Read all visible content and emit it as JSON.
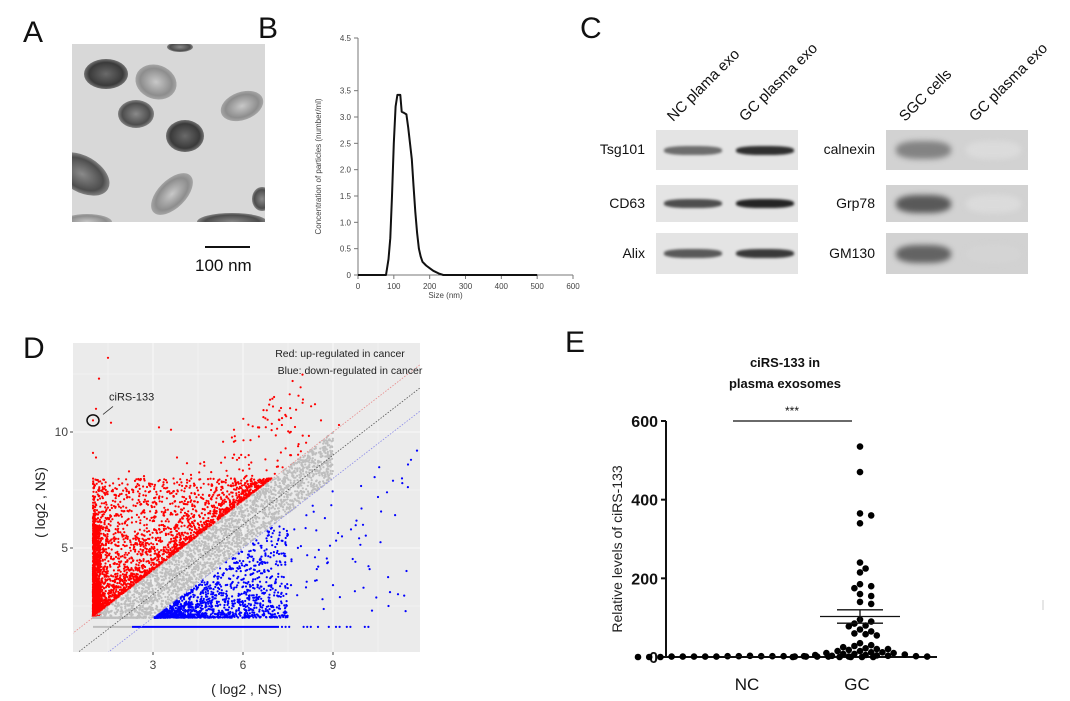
{
  "panels": {
    "A": {
      "letter": "A",
      "image": "transmission-electron-micrograph-of-exosomes",
      "scale_bar_label": "100 nm"
    },
    "B": {
      "letter": "B"
    },
    "C": {
      "letter": "C",
      "left_blot": {
        "lanes": [
          "NC plama exo",
          "GC plasma exo"
        ],
        "rows": [
          {
            "label": "Tsg101",
            "intensities": [
              0.55,
              0.85
            ]
          },
          {
            "label": "CD63",
            "intensities": [
              0.7,
              0.9
            ]
          },
          {
            "label": "Alix",
            "intensities": [
              0.65,
              0.8
            ]
          }
        ]
      },
      "right_blot": {
        "lanes": [
          "SGC cells",
          "GC plasma exo"
        ],
        "rows": [
          {
            "label": "calnexin",
            "intensities": [
              0.45,
              0.03
            ]
          },
          {
            "label": "Grp78",
            "intensities": [
              0.65,
              0.03
            ]
          },
          {
            "label": "GM130",
            "intensities": [
              0.6,
              0.06
            ]
          }
        ]
      }
    },
    "D": {
      "letter": "D"
    },
    "E": {
      "letter": "E"
    }
  },
  "chart_data": [
    {
      "panel": "B",
      "type": "line",
      "title": "",
      "xlabel": "Size (nm)",
      "ylabel": "Concentration of particles (number/ml)",
      "xlim": [
        0,
        600
      ],
      "ylim": [
        0,
        4.5
      ],
      "xticks": [
        "0",
        "100",
        "200",
        "300",
        "400",
        "500",
        "600"
      ],
      "yticks": [
        "0",
        "0.5",
        "1.0",
        "1.5",
        "2.0",
        "2.5",
        "3.0",
        "3.5",
        "4.5"
      ],
      "grid": false,
      "series": [
        {
          "name": "particle size distribution",
          "x": [
            0,
            40,
            78,
            85,
            90,
            95,
            100,
            105,
            110,
            118,
            122,
            128,
            135,
            140,
            145,
            150,
            155,
            160,
            165,
            170,
            175,
            180,
            190,
            200,
            210,
            225,
            238,
            260,
            300,
            400,
            500
          ],
          "y": [
            0,
            0,
            0,
            0.3,
            0.7,
            1.5,
            2.5,
            3.2,
            3.42,
            3.42,
            3.1,
            3.08,
            3.05,
            2.8,
            2.5,
            2.2,
            1.7,
            1.2,
            0.8,
            0.5,
            0.35,
            0.25,
            0.18,
            0.13,
            0.08,
            0.03,
            0,
            0,
            0,
            0,
            0
          ]
        }
      ]
    },
    {
      "panel": "D",
      "type": "scatter",
      "title": "",
      "xlabel": "( log2 , NS)",
      "ylabel": "( log2 , NS)",
      "xlim": [
        0.3,
        12
      ],
      "ylim": [
        1.0,
        13.5
      ],
      "xticks": [
        "3",
        "6",
        "9"
      ],
      "yticks": [
        "5",
        "10"
      ],
      "grid": true,
      "legend": [
        "Red: up-regulated in cancer",
        "Blue: down-regulated in cancer"
      ],
      "legend_position": "top-right",
      "annotation": {
        "label": "ciRS-133",
        "x": 1.0,
        "y": 10.5
      },
      "series": [
        {
          "name": "up-regulated",
          "color": "#ff0000",
          "description": "dense cloud above upper diagonal threshold, x from 1 to ~9, y from 2 to ~12",
          "outliers": [
            [
              1.5,
              13.2
            ],
            [
              1.2,
              12.3
            ],
            [
              1.0,
              10.5
            ],
            [
              1.1,
              11.0
            ],
            [
              1.6,
              10.4
            ],
            [
              3.2,
              10.2
            ],
            [
              3.6,
              10.1
            ],
            [
              5.7,
              10.1
            ],
            [
              7.0,
              11.1
            ],
            [
              7.3,
              10.6
            ],
            [
              8.0,
              11.4
            ],
            [
              8.4,
              11.2
            ],
            [
              8.6,
              10.5
            ],
            [
              9.2,
              10.3
            ],
            [
              6.5,
              10.2
            ],
            [
              1.0,
              9.1
            ],
            [
              1.1,
              8.9
            ],
            [
              2.2,
              8.3
            ],
            [
              2.7,
              8.1
            ],
            [
              3.8,
              8.9
            ],
            [
              5.4,
              8.9
            ],
            [
              5.8,
              8.8
            ]
          ]
        },
        {
          "name": "not significant",
          "color": "#bebebe",
          "description": "band along diagonal between thresholds"
        },
        {
          "name": "down-regulated",
          "color": "#0000ff",
          "description": "dense cloud below lower diagonal threshold, x from 3 to ~12, y from 2 to ~9",
          "outliers": [
            [
              11.8,
              9.2
            ],
            [
              11.6,
              8.8
            ],
            [
              11.5,
              8.6
            ],
            [
              11.3,
              8.0
            ],
            [
              11.0,
              7.9
            ],
            [
              10.8,
              7.4
            ],
            [
              10.5,
              7.2
            ],
            [
              10.0,
              6.0
            ],
            [
              9.6,
              5.8
            ],
            [
              9.3,
              5.5
            ],
            [
              8.9,
              5.1
            ],
            [
              8.4,
              4.6
            ],
            [
              8.1,
              3.3
            ],
            [
              7.6,
              3.4
            ],
            [
              7.2,
              2.4
            ],
            [
              9.0,
              3.4
            ],
            [
              10.3,
              2.3
            ],
            [
              10.9,
              3.1
            ]
          ]
        },
        {
          "name": "zero-baseline",
          "color": "#0000ff",
          "y": 1.6,
          "x_range": [
            1.0,
            10.2
          ]
        }
      ],
      "threshold_lines": [
        {
          "name": "upper threshold",
          "color": "#e88a8a",
          "slope": 1,
          "intercept": 1.0
        },
        {
          "name": "identity",
          "color": "#555555",
          "slope": 1,
          "intercept": 0
        },
        {
          "name": "lower threshold",
          "color": "#8a8ae8",
          "slope": 1,
          "intercept": -1.0
        }
      ]
    },
    {
      "panel": "E",
      "type": "scatter",
      "title": "ciRS-133 in plasma exosomes",
      "title_lines": [
        "ciRS-133 in",
        "plasma exosomes"
      ],
      "xlabel": "",
      "ylabel": "Relative levels of ciRS-133",
      "categories": [
        "NC",
        "GC"
      ],
      "ylim": [
        0,
        600
      ],
      "yticks": [
        "0",
        "200",
        "400",
        "600"
      ],
      "grid": false,
      "significance": {
        "label": "***",
        "between": [
          "NC",
          "GC"
        ],
        "y": 600
      },
      "series": [
        {
          "name": "NC",
          "color": "#000000",
          "values": [
            0,
            1,
            2,
            0,
            1,
            3,
            1,
            0,
            2,
            1,
            0,
            1,
            2,
            1,
            0,
            1,
            2,
            0,
            1,
            1,
            0,
            2
          ]
        },
        {
          "name": "GC",
          "color": "#000000",
          "values": [
            535,
            470,
            365,
            360,
            340,
            240,
            225,
            215,
            185,
            180,
            175,
            155,
            160,
            140,
            135,
            90,
            85,
            95,
            80,
            78,
            70,
            65,
            58,
            55,
            60,
            35,
            30,
            28,
            25,
            22,
            20,
            18,
            15,
            12,
            10,
            10,
            8,
            8,
            6,
            5,
            5,
            4,
            3,
            3,
            2,
            2,
            1,
            1,
            0,
            15,
            20,
            12
          ],
          "mean": 103,
          "sem_upper": 120,
          "sem_lower": 86
        }
      ]
    }
  ]
}
